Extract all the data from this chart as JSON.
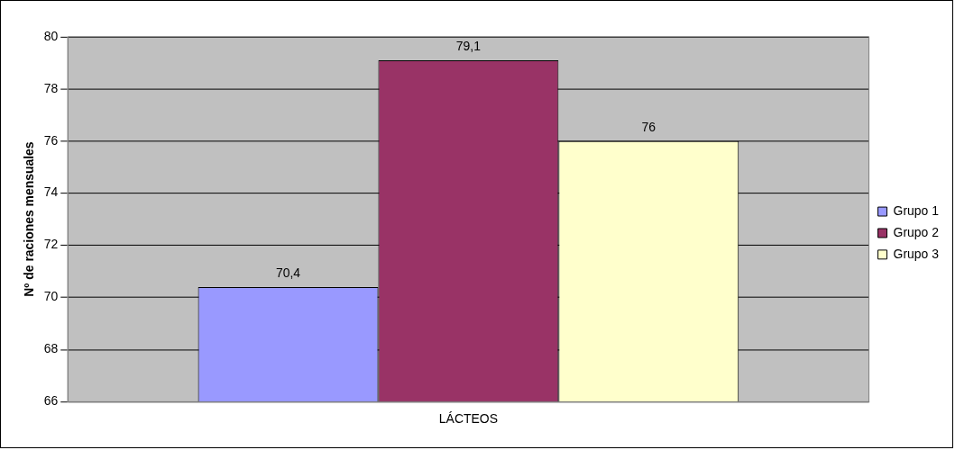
{
  "chart_data": {
    "type": "bar",
    "ylabel": "Nº de raciones mensuales",
    "categories": [
      "LÁCTEOS"
    ],
    "series": [
      {
        "name": "Grupo 1",
        "color": "#9999ff",
        "values": [
          70.4
        ],
        "value_labels": [
          "70,4"
        ]
      },
      {
        "name": "Grupo 2",
        "color": "#993366",
        "values": [
          79.1
        ],
        "value_labels": [
          "79,1"
        ]
      },
      {
        "name": "Grupo 3",
        "color": "#ffffcc",
        "values": [
          76
        ],
        "value_labels": [
          "76"
        ]
      }
    ],
    "ylim": [
      66,
      80
    ],
    "yticks": [
      66,
      68,
      70,
      72,
      74,
      76,
      78,
      80
    ],
    "grid": "y",
    "legend": "right"
  }
}
